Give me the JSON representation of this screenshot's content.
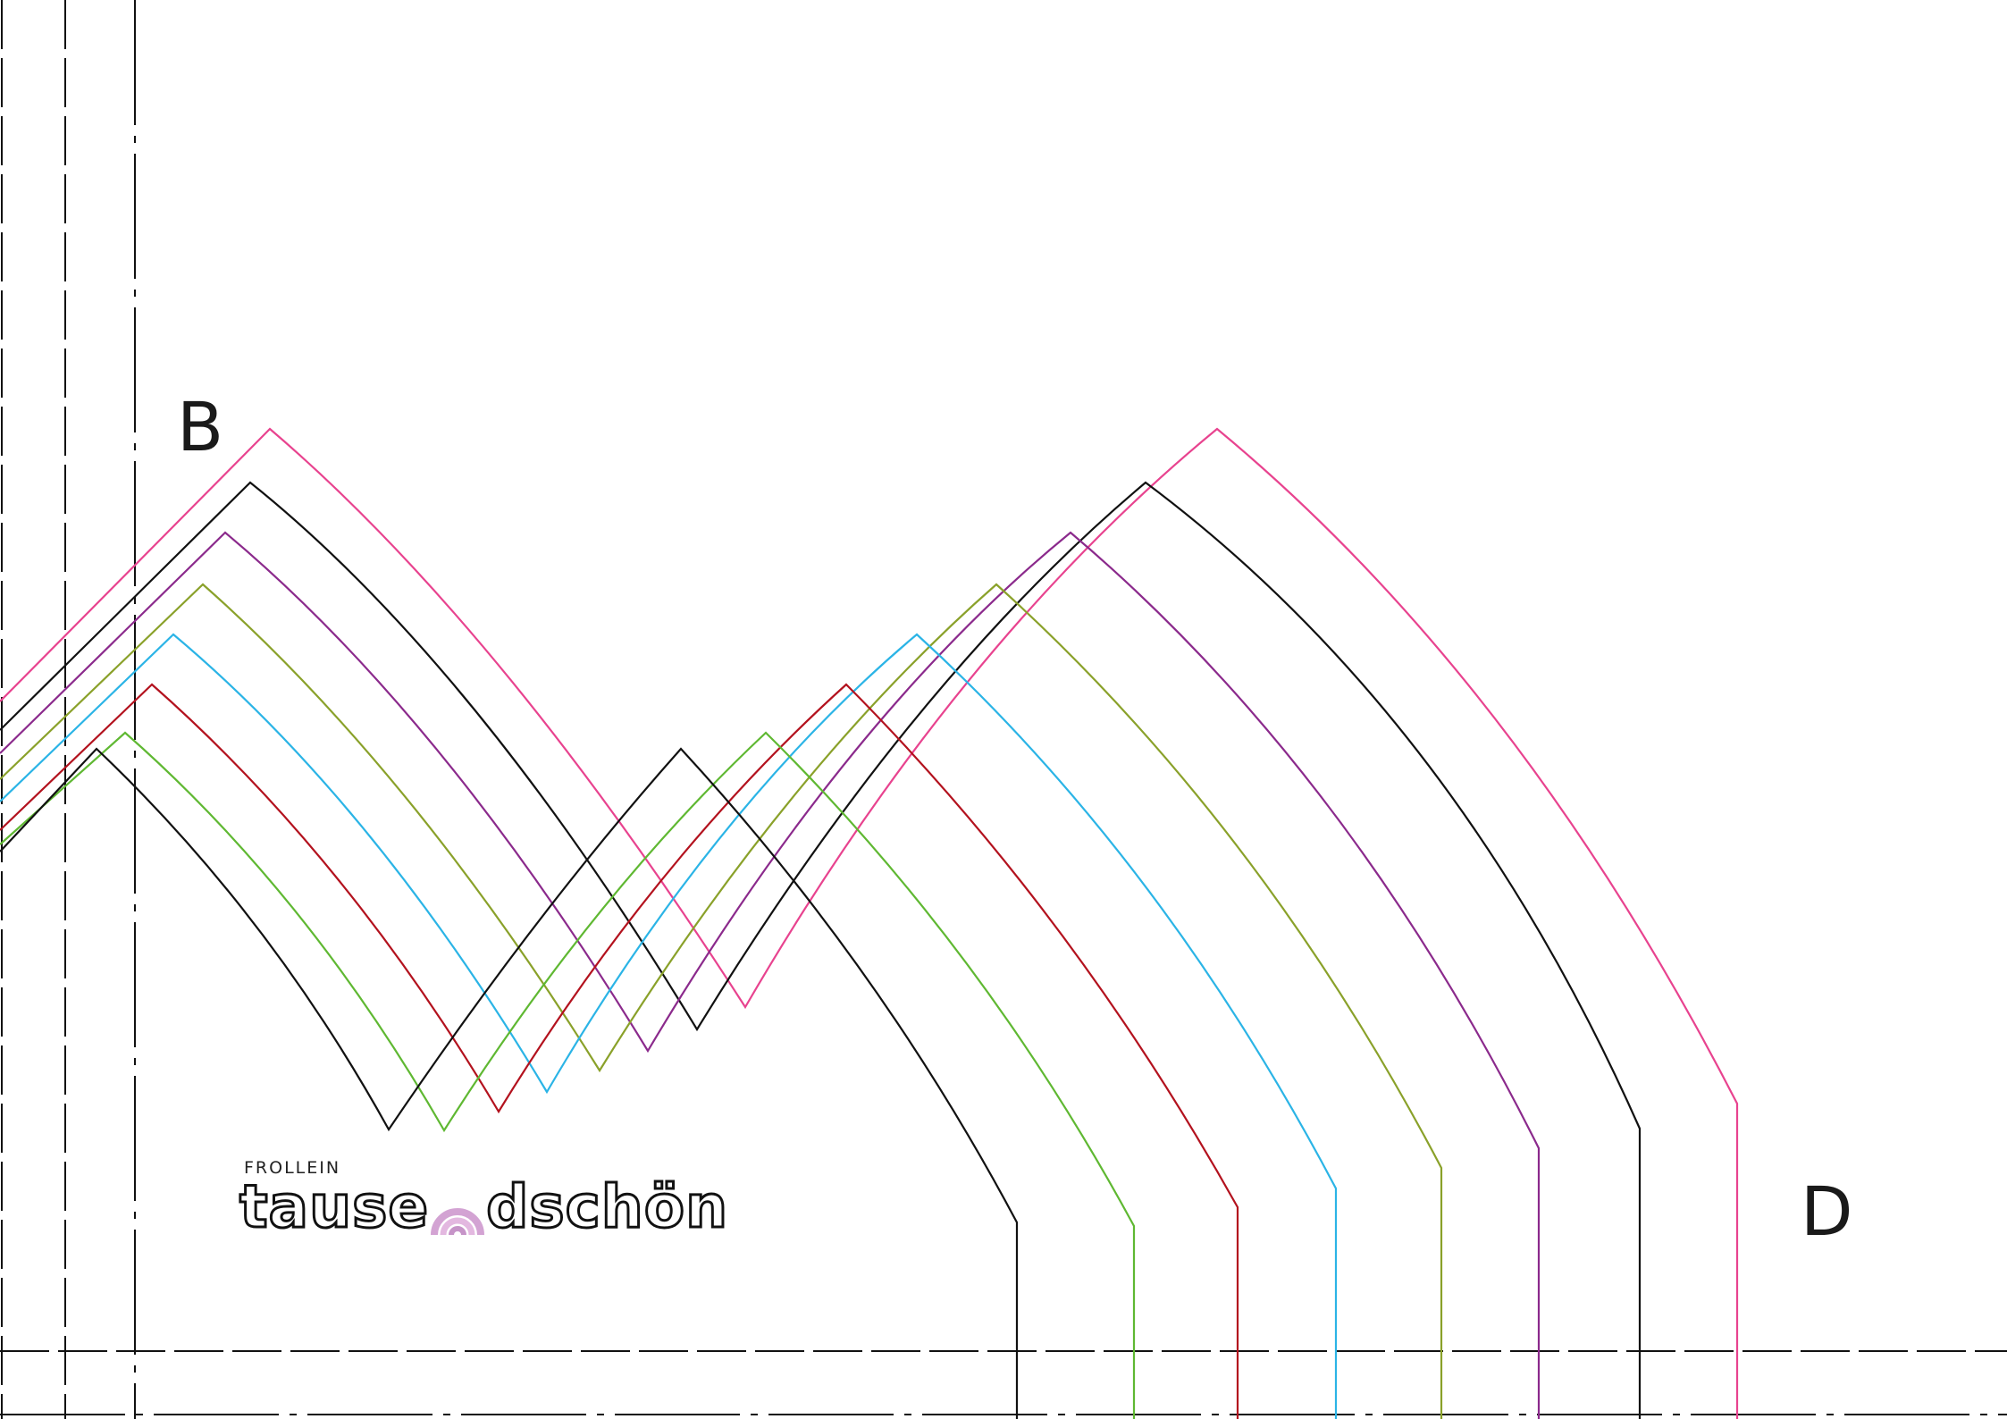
{
  "labels": {
    "b": "B",
    "d": "D"
  },
  "logo": {
    "top": "FROLLEIN",
    "main_left": "tause",
    "main_right": "dschön"
  },
  "colors": {
    "pink": "#e8438f",
    "black": "#111111",
    "purple": "#8b2a8c",
    "olive": "#8aa12a",
    "cyan": "#2bb4e6",
    "red": "#b3121e",
    "green": "#5fb832",
    "rainbow_outer": "#d3a3d3",
    "rainbow_mid": "#e3b8e0",
    "rainbow_inner": "#c694c8"
  }
}
